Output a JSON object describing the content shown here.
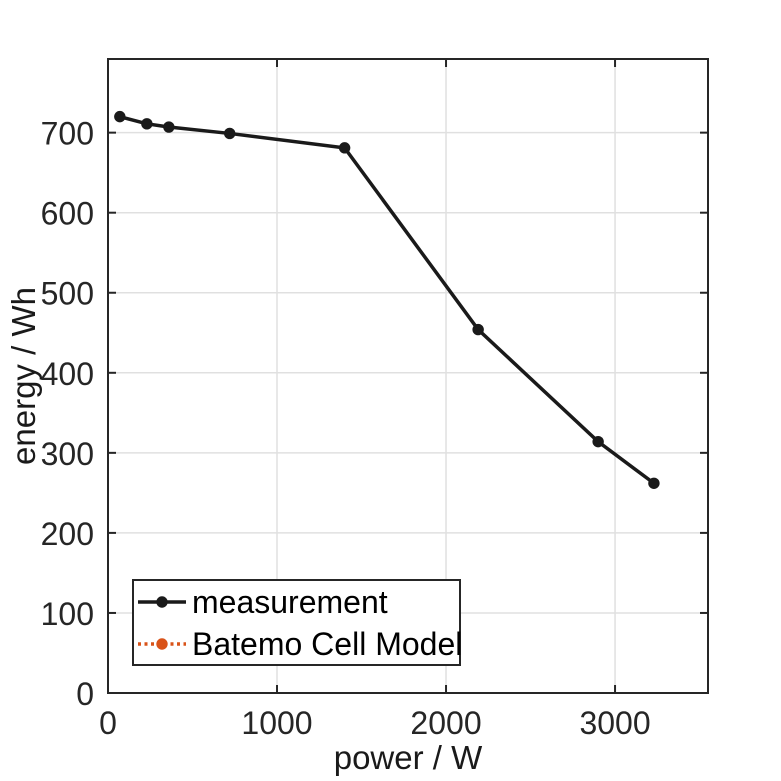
{
  "figure": {
    "background": "#FFFFFF",
    "axes_color": "#262626",
    "grid_color": "#E0E0E0",
    "tick_label_color": "#262626"
  },
  "chart_data": {
    "type": "line",
    "title": "",
    "xlabel": "power / W",
    "ylabel": "energy / Wh",
    "xlim": [
      0,
      3550
    ],
    "ylim": [
      0,
      792
    ],
    "xticks": [
      0,
      1000,
      2000,
      3000
    ],
    "yticks": [
      0,
      100,
      200,
      300,
      400,
      500,
      600,
      700
    ],
    "grid": true,
    "legend_position": "bottom-left-inside",
    "series": [
      {
        "name": "measurement",
        "color": "#1A1A1A",
        "line_style": "solid",
        "marker": "filled-circle",
        "x": [
          70,
          230,
          360,
          720,
          1400,
          2190,
          2900,
          3230
        ],
        "y": [
          720,
          711,
          707,
          699,
          681,
          454,
          314,
          262
        ]
      },
      {
        "name": "Batemo Cell Model",
        "color": "#D95319",
        "line_style": "dotted",
        "marker": "filled-circle",
        "x": [],
        "y": []
      }
    ]
  }
}
